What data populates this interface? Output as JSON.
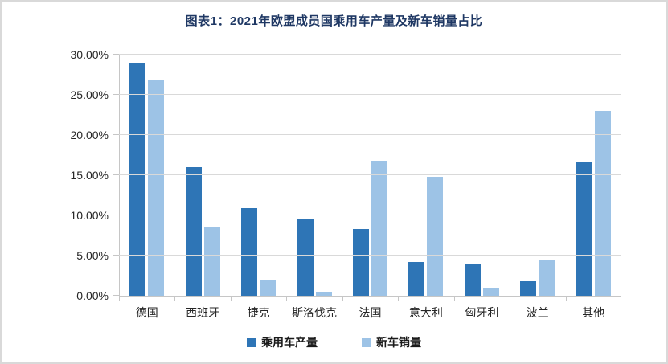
{
  "chart_data": {
    "type": "bar",
    "title": "图表1：2021年欧盟成员国乘用车产量及新车销量占比",
    "categories": [
      "德国",
      "西班牙",
      "捷克",
      "斯洛伐克",
      "法国",
      "意大利",
      "匈牙利",
      "波兰",
      "其他"
    ],
    "series": [
      {
        "name": "乘用车产量",
        "color": "#2e75b6",
        "values": [
          28.9,
          16.0,
          10.9,
          9.5,
          8.3,
          4.2,
          4.0,
          1.8,
          16.7
        ]
      },
      {
        "name": "新车销量",
        "color": "#9dc3e6",
        "values": [
          26.9,
          8.6,
          2.0,
          0.5,
          16.8,
          14.8,
          1.0,
          4.4,
          23.0
        ]
      }
    ],
    "ylabel": "",
    "xlabel": "",
    "ylim": [
      0,
      30
    ],
    "y_tick_step": 5,
    "y_tick_labels": [
      "0.00%",
      "5.00%",
      "10.00%",
      "15.00%",
      "20.00%",
      "25.00%",
      "30.00%"
    ],
    "grid": true,
    "legend_position": "bottom"
  },
  "colors": {
    "title": "#1f3864",
    "gridline": "#d9d9d9",
    "axis": "#c6c6c6",
    "frame_border": "#d9d9d9"
  }
}
